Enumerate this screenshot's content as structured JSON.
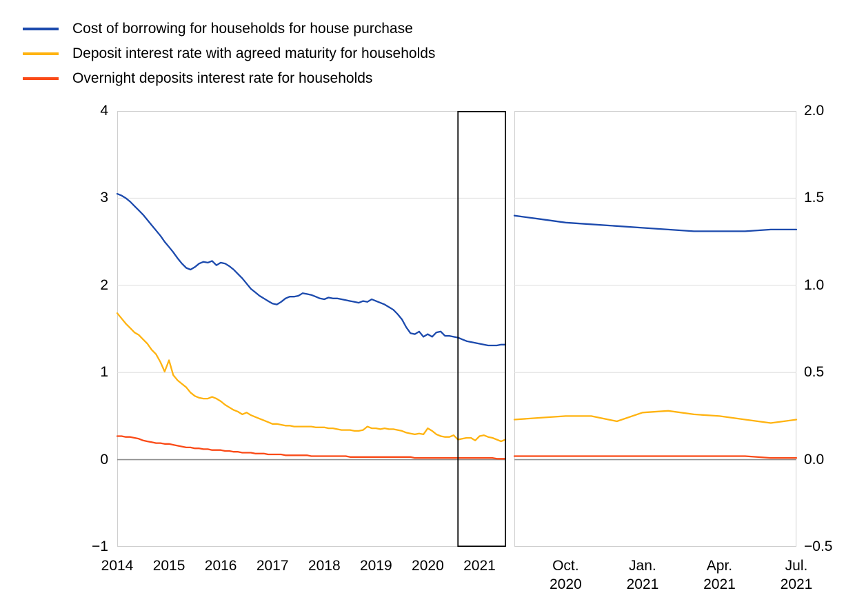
{
  "legend": {
    "items": [
      {
        "label": "Cost of borrowing for households for house purchase",
        "color": "#1c4aad"
      },
      {
        "label": "Deposit interest rate with agreed maturity for households",
        "color": "#ffb310"
      },
      {
        "label": "Overnight deposits interest rate for households",
        "color": "#fa4a17"
      }
    ]
  },
  "chart_data": {
    "type": "line",
    "title": "",
    "frame_color": "#cfcfcf",
    "grid_color": "#dedede",
    "zero_line_color": "#8f8f8f",
    "highlight_box_color": "#000000",
    "panels": [
      {
        "name": "full-history",
        "x_start": "2014-01",
        "x_end": "2021-07",
        "ylim": [
          -1,
          4
        ],
        "y_ticks": [
          {
            "label": "4",
            "value": 4
          },
          {
            "label": "3",
            "value": 3
          },
          {
            "label": "2",
            "value": 2
          },
          {
            "label": "1",
            "value": 1
          },
          {
            "label": "0",
            "value": 0
          },
          {
            "label": "−1",
            "value": -1
          }
        ],
        "gridline_values": [
          3,
          2,
          1
        ],
        "zero_line": 0,
        "x_ticks": [
          {
            "label": "2014",
            "month_index": 0
          },
          {
            "label": "2015",
            "month_index": 12
          },
          {
            "label": "2016",
            "month_index": 24
          },
          {
            "label": "2017",
            "month_index": 36
          },
          {
            "label": "2018",
            "month_index": 48
          },
          {
            "label": "2019",
            "month_index": 60
          },
          {
            "label": "2020",
            "month_index": 72
          },
          {
            "label": "2021",
            "month_index": 84
          }
        ],
        "highlight_box": {
          "start_month_index": 79,
          "end_month_index": 90
        },
        "series": [
          {
            "name": "cost-of-borrowing-house-purchase",
            "color": "#1c4aad",
            "values": [
              3.05,
              3.03,
              3.0,
              2.96,
              2.91,
              2.86,
              2.81,
              2.75,
              2.69,
              2.63,
              2.57,
              2.5,
              2.44,
              2.38,
              2.31,
              2.25,
              2.2,
              2.18,
              2.21,
              2.25,
              2.27,
              2.26,
              2.28,
              2.23,
              2.26,
              2.25,
              2.22,
              2.18,
              2.13,
              2.08,
              2.02,
              1.96,
              1.92,
              1.88,
              1.85,
              1.82,
              1.79,
              1.78,
              1.81,
              1.85,
              1.87,
              1.87,
              1.88,
              1.91,
              1.9,
              1.89,
              1.87,
              1.85,
              1.84,
              1.86,
              1.85,
              1.85,
              1.84,
              1.83,
              1.82,
              1.81,
              1.8,
              1.82,
              1.81,
              1.84,
              1.82,
              1.8,
              1.78,
              1.75,
              1.72,
              1.67,
              1.61,
              1.52,
              1.45,
              1.44,
              1.47,
              1.41,
              1.44,
              1.41,
              1.46,
              1.47,
              1.42,
              1.42,
              1.41,
              1.4,
              1.38,
              1.36,
              1.35,
              1.34,
              1.33,
              1.32,
              1.31,
              1.31,
              1.31,
              1.32,
              1.32
            ]
          },
          {
            "name": "deposit-agreed-maturity",
            "color": "#ffb310",
            "values": [
              1.68,
              1.62,
              1.56,
              1.51,
              1.46,
              1.43,
              1.38,
              1.33,
              1.26,
              1.21,
              1.12,
              1.01,
              1.14,
              0.97,
              0.91,
              0.87,
              0.83,
              0.77,
              0.73,
              0.71,
              0.7,
              0.7,
              0.72,
              0.7,
              0.67,
              0.63,
              0.6,
              0.57,
              0.55,
              0.52,
              0.54,
              0.51,
              0.49,
              0.47,
              0.45,
              0.43,
              0.41,
              0.41,
              0.4,
              0.39,
              0.39,
              0.38,
              0.38,
              0.38,
              0.38,
              0.38,
              0.37,
              0.37,
              0.37,
              0.36,
              0.36,
              0.35,
              0.34,
              0.34,
              0.34,
              0.33,
              0.33,
              0.34,
              0.38,
              0.36,
              0.36,
              0.35,
              0.36,
              0.35,
              0.35,
              0.34,
              0.33,
              0.31,
              0.3,
              0.29,
              0.3,
              0.29,
              0.36,
              0.33,
              0.29,
              0.27,
              0.26,
              0.26,
              0.28,
              0.23,
              0.24,
              0.25,
              0.25,
              0.22,
              0.27,
              0.28,
              0.26,
              0.25,
              0.23,
              0.21,
              0.23
            ]
          },
          {
            "name": "overnight-deposits",
            "color": "#fa4a17",
            "values": [
              0.27,
              0.27,
              0.26,
              0.26,
              0.25,
              0.24,
              0.22,
              0.21,
              0.2,
              0.19,
              0.19,
              0.18,
              0.18,
              0.17,
              0.16,
              0.15,
              0.14,
              0.14,
              0.13,
              0.13,
              0.12,
              0.12,
              0.11,
              0.11,
              0.11,
              0.1,
              0.1,
              0.09,
              0.09,
              0.08,
              0.08,
              0.08,
              0.07,
              0.07,
              0.07,
              0.06,
              0.06,
              0.06,
              0.06,
              0.05,
              0.05,
              0.05,
              0.05,
              0.05,
              0.05,
              0.04,
              0.04,
              0.04,
              0.04,
              0.04,
              0.04,
              0.04,
              0.04,
              0.04,
              0.03,
              0.03,
              0.03,
              0.03,
              0.03,
              0.03,
              0.03,
              0.03,
              0.03,
              0.03,
              0.03,
              0.03,
              0.03,
              0.03,
              0.03,
              0.02,
              0.02,
              0.02,
              0.02,
              0.02,
              0.02,
              0.02,
              0.02,
              0.02,
              0.02,
              0.02,
              0.02,
              0.02,
              0.02,
              0.02,
              0.02,
              0.02,
              0.02,
              0.02,
              0.01,
              0.01,
              0.01
            ]
          }
        ]
      },
      {
        "name": "recent-zoom",
        "x_start": "2020-08",
        "x_end": "2021-07",
        "ylim": [
          -0.5,
          2.0
        ],
        "y_ticks": [
          {
            "label": "2.0",
            "value": 2.0
          },
          {
            "label": "1.5",
            "value": 1.5
          },
          {
            "label": "1.0",
            "value": 1.0
          },
          {
            "label": "0.5",
            "value": 0.5
          },
          {
            "label": "0.0",
            "value": 0.0
          },
          {
            "label": "−0.5",
            "value": -0.5
          }
        ],
        "gridline_values": [
          1.5,
          1.0,
          0.5
        ],
        "zero_line": 0,
        "x_ticks": [
          {
            "label": "Oct.",
            "label2": "2020",
            "month_index": 2
          },
          {
            "label": "Jan.",
            "label2": "2021",
            "month_index": 5
          },
          {
            "label": "Apr.",
            "label2": "2021",
            "month_index": 8
          },
          {
            "label": "Jul.",
            "label2": "2021",
            "month_index": 11
          }
        ],
        "series": [
          {
            "name": "cost-of-borrowing-house-purchase",
            "color": "#1c4aad",
            "values": [
              1.4,
              1.38,
              1.36,
              1.35,
              1.34,
              1.33,
              1.32,
              1.31,
              1.31,
              1.31,
              1.32,
              1.32
            ]
          },
          {
            "name": "deposit-agreed-maturity",
            "color": "#ffb310",
            "values": [
              0.23,
              0.24,
              0.25,
              0.25,
              0.22,
              0.27,
              0.28,
              0.26,
              0.25,
              0.23,
              0.21,
              0.23
            ]
          },
          {
            "name": "overnight-deposits",
            "color": "#fa4a17",
            "values": [
              0.02,
              0.02,
              0.02,
              0.02,
              0.02,
              0.02,
              0.02,
              0.02,
              0.02,
              0.02,
              0.01,
              0.01
            ]
          }
        ]
      }
    ]
  }
}
